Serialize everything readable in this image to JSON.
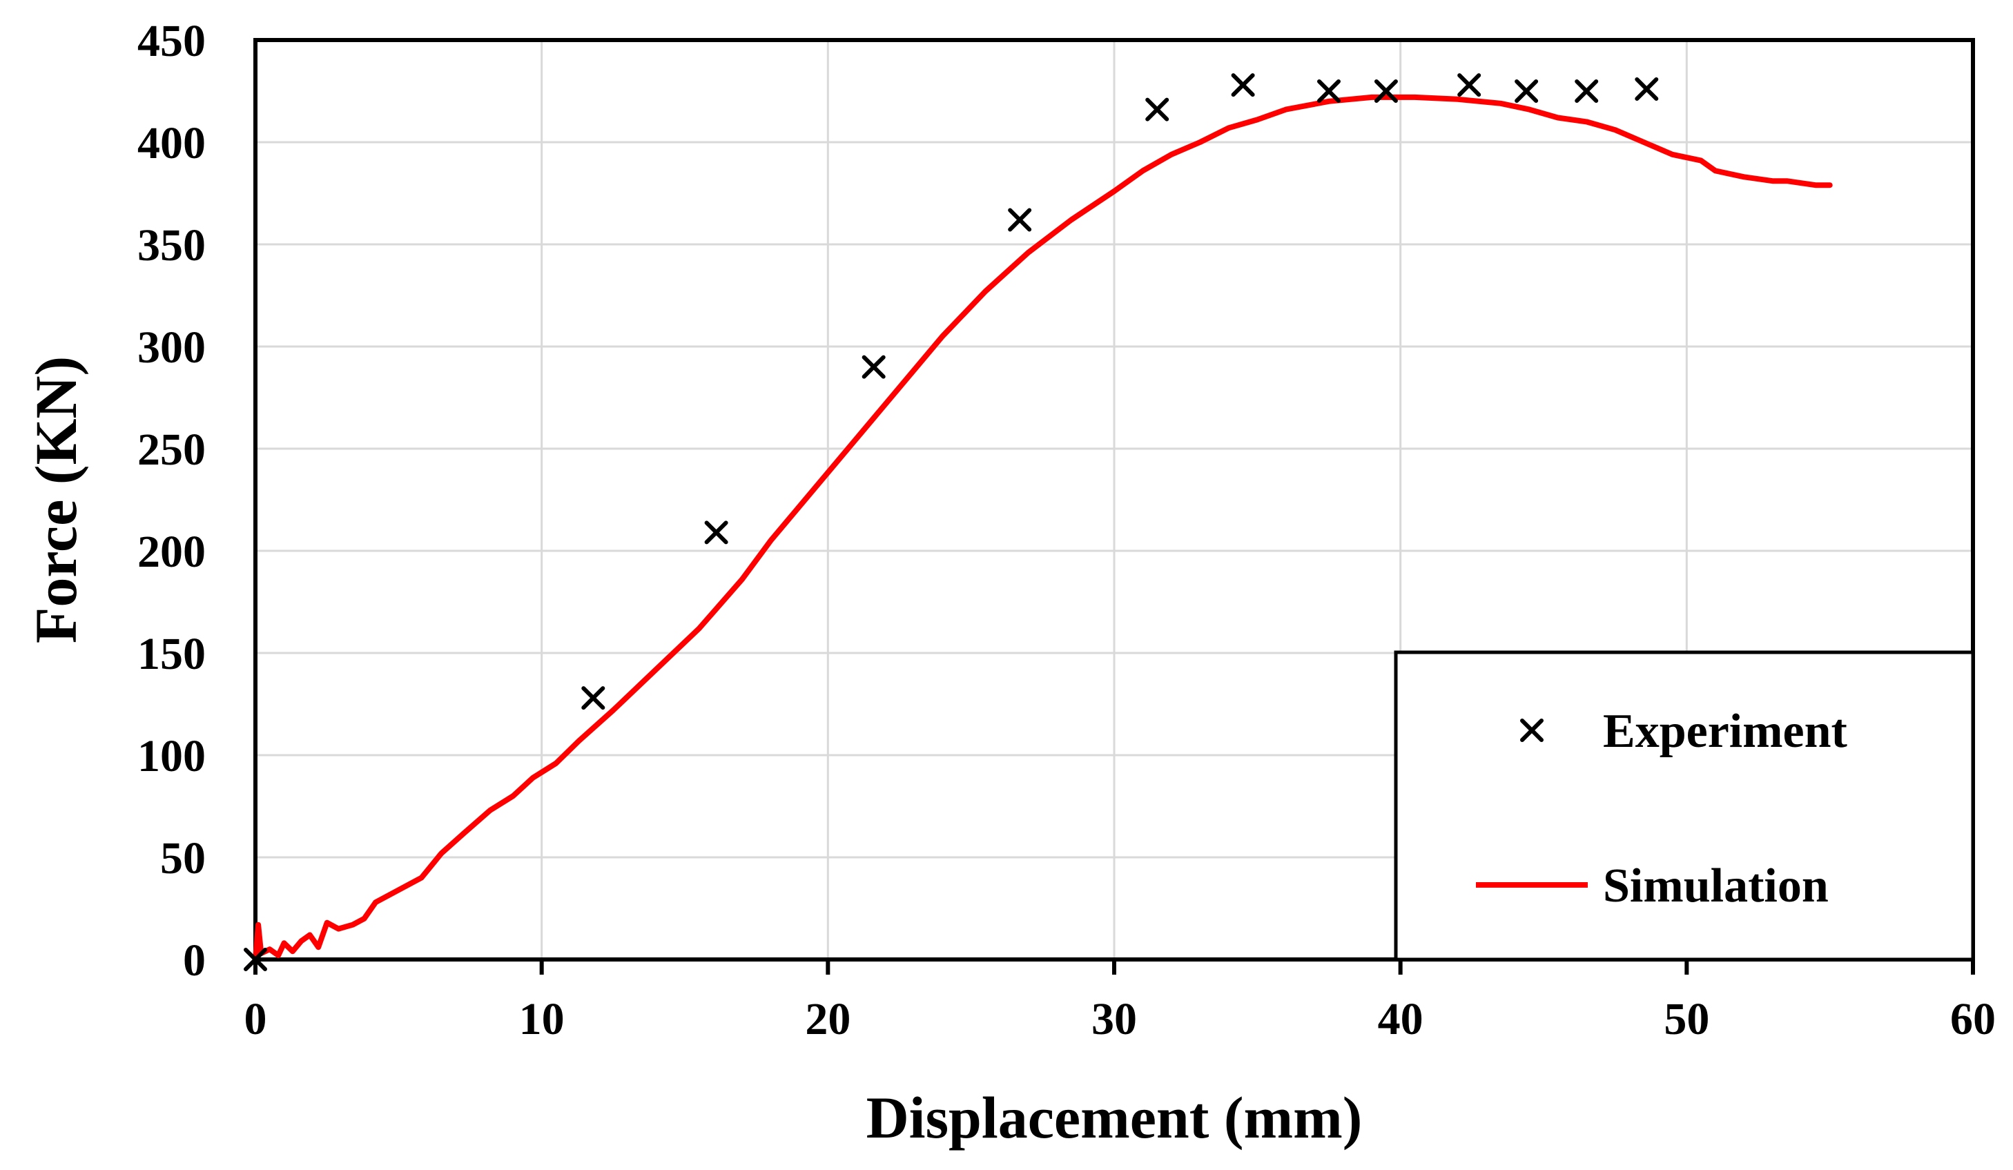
{
  "chart_data": {
    "type": "scatter",
    "xlabel": "Displacement (mm)",
    "ylabel": "Force (KN)",
    "xlim": [
      0,
      60
    ],
    "ylim": [
      0,
      450
    ],
    "x_ticks": [
      0,
      10,
      20,
      30,
      40,
      50,
      60
    ],
    "y_ticks": [
      0,
      50,
      100,
      150,
      200,
      250,
      300,
      350,
      400,
      450
    ],
    "grid": true,
    "legend_position": "bottom-right",
    "series": [
      {
        "name": "Experiment",
        "kind": "scatter",
        "marker": "x",
        "color": "#000000",
        "points": [
          [
            0,
            0
          ],
          [
            11.8,
            128
          ],
          [
            16.1,
            209
          ],
          [
            21.6,
            290
          ],
          [
            26.7,
            362
          ],
          [
            31.5,
            416
          ],
          [
            34.5,
            428
          ],
          [
            37.5,
            425
          ],
          [
            39.5,
            425
          ],
          [
            42.4,
            428
          ],
          [
            44.4,
            425
          ],
          [
            46.5,
            425
          ],
          [
            48.6,
            426
          ]
        ]
      },
      {
        "name": "Simulation",
        "kind": "line",
        "color": "#ff0000",
        "points": [
          [
            0,
            0
          ],
          [
            0.1,
            17
          ],
          [
            0.2,
            3
          ],
          [
            0.5,
            5
          ],
          [
            0.8,
            2
          ],
          [
            1.0,
            8
          ],
          [
            1.3,
            4
          ],
          [
            1.6,
            9
          ],
          [
            1.9,
            12
          ],
          [
            2.2,
            6
          ],
          [
            2.5,
            18
          ],
          [
            2.9,
            15
          ],
          [
            3.4,
            17
          ],
          [
            3.8,
            20
          ],
          [
            4.2,
            28
          ],
          [
            5.0,
            34
          ],
          [
            5.8,
            40
          ],
          [
            6.5,
            52
          ],
          [
            7.3,
            62
          ],
          [
            8.2,
            73
          ],
          [
            9.0,
            80
          ],
          [
            9.7,
            89
          ],
          [
            10.5,
            96
          ],
          [
            11.3,
            107
          ],
          [
            12.5,
            122
          ],
          [
            14.0,
            142
          ],
          [
            15.5,
            162
          ],
          [
            17.0,
            186
          ],
          [
            18.0,
            205
          ],
          [
            19.5,
            230
          ],
          [
            21.0,
            255
          ],
          [
            22.5,
            280
          ],
          [
            24.0,
            305
          ],
          [
            25.5,
            327
          ],
          [
            27.0,
            346
          ],
          [
            28.5,
            362
          ],
          [
            30.0,
            376
          ],
          [
            31.0,
            386
          ],
          [
            32.0,
            394
          ],
          [
            33.0,
            400
          ],
          [
            34.0,
            407
          ],
          [
            35.0,
            411
          ],
          [
            36.0,
            416
          ],
          [
            37.5,
            420
          ],
          [
            39.0,
            422
          ],
          [
            40.5,
            422
          ],
          [
            42.0,
            421
          ],
          [
            43.5,
            419
          ],
          [
            44.5,
            416
          ],
          [
            45.5,
            412
          ],
          [
            46.5,
            410
          ],
          [
            47.5,
            406
          ],
          [
            48.5,
            400
          ],
          [
            49.5,
            394
          ],
          [
            50.5,
            391
          ],
          [
            51.0,
            386
          ],
          [
            52.0,
            383
          ],
          [
            53.0,
            381
          ],
          [
            53.5,
            381
          ],
          [
            54.0,
            380
          ],
          [
            54.5,
            379
          ],
          [
            55.0,
            379
          ]
        ]
      }
    ]
  }
}
